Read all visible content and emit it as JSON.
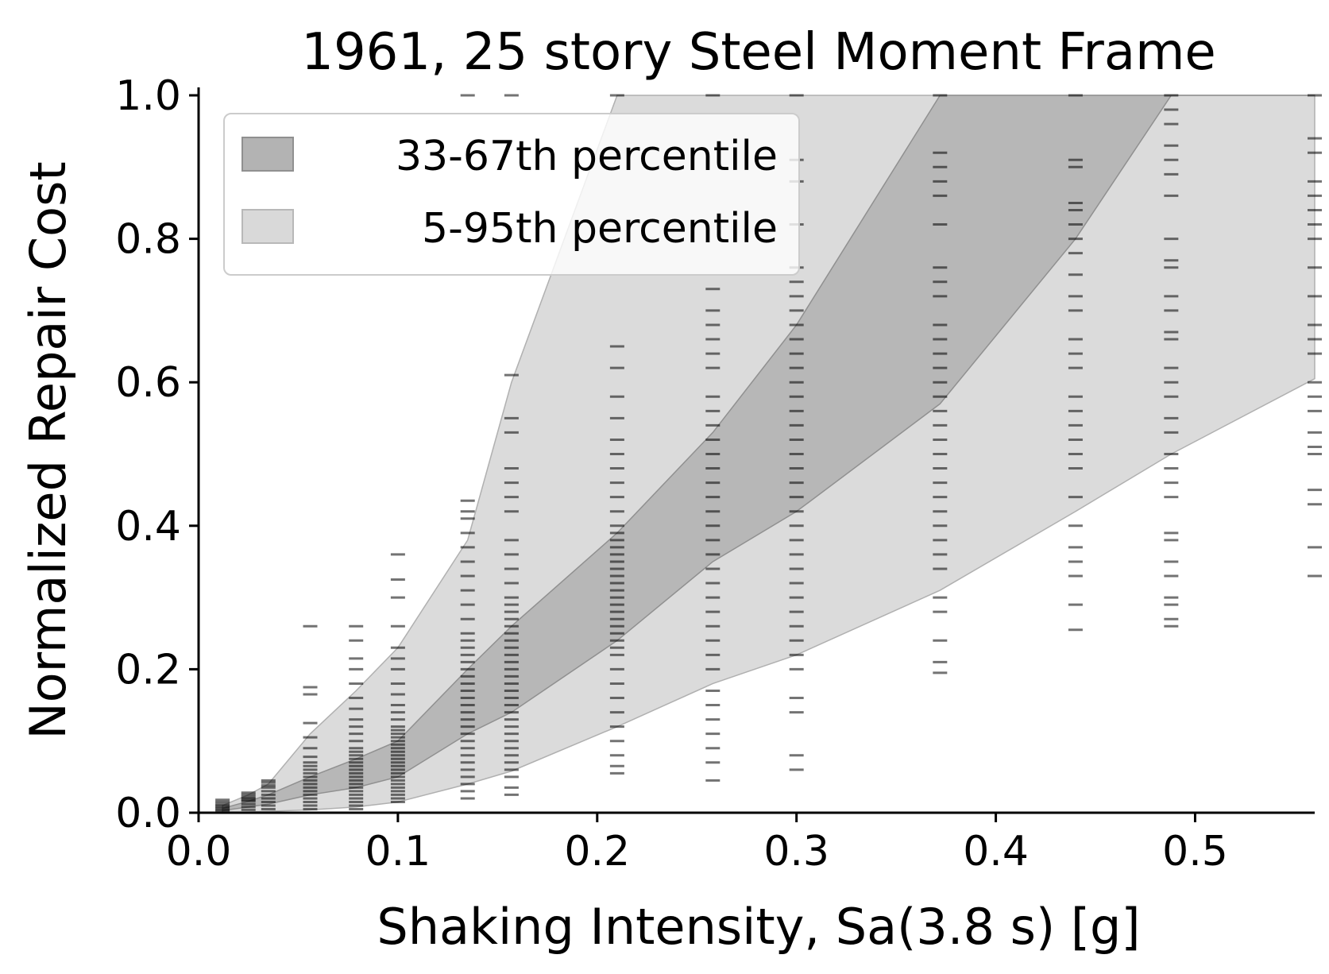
{
  "chart_data": {
    "type": "scatter",
    "title": "1961, 25 story Steel Moment Frame",
    "xlabel": "Shaking Intensity, Sa(3.8 s) [g]",
    "ylabel": "Normalized Repair Cost",
    "xlim": [
      0.0,
      0.56
    ],
    "ylim": [
      0.0,
      1.0
    ],
    "xticks": [
      "0.0",
      "0.1",
      "0.2",
      "0.3",
      "0.4",
      "0.5"
    ],
    "yticks": [
      "0.0",
      "0.2",
      "0.4",
      "0.6",
      "0.8",
      "1.0"
    ],
    "grid": false,
    "legend_position": "top-left",
    "legend": [
      {
        "label": "33-67th percentile",
        "color": "#b3b3b3"
      },
      {
        "label": "5-95th percentile",
        "color": "#d9d9d9"
      }
    ],
    "intensity_levels": [
      0.012,
      0.025,
      0.035,
      0.056,
      0.079,
      0.1,
      0.135,
      0.157,
      0.21,
      0.258,
      0.3,
      0.372,
      0.44,
      0.488,
      0.56
    ],
    "band_5_95": {
      "lower": [
        0.0,
        0.001,
        0.002,
        0.004,
        0.008,
        0.015,
        0.04,
        0.058,
        0.12,
        0.18,
        0.22,
        0.31,
        0.42,
        0.5,
        0.605
      ],
      "upper": [
        0.01,
        0.025,
        0.04,
        0.11,
        0.17,
        0.23,
        0.38,
        0.6,
        1.0,
        1.0,
        1.0,
        1.0,
        1.0,
        1.0,
        1.0
      ]
    },
    "band_33_67": {
      "lower": [
        0.003,
        0.008,
        0.012,
        0.025,
        0.035,
        0.05,
        0.11,
        0.14,
        0.24,
        0.35,
        0.42,
        0.57,
        0.8,
        1.0,
        1.0
      ],
      "upper": [
        0.006,
        0.016,
        0.025,
        0.05,
        0.075,
        0.1,
        0.2,
        0.26,
        0.39,
        0.53,
        0.68,
        1.0,
        1.0,
        1.0,
        1.0
      ]
    },
    "samples": [
      {
        "x": 0.012,
        "values": [
          0.0,
          0.002,
          0.004,
          0.006,
          0.008,
          0.01,
          0.012,
          0.015,
          0.018
        ]
      },
      {
        "x": 0.025,
        "values": [
          0.004,
          0.008,
          0.012,
          0.016,
          0.018,
          0.02,
          0.022,
          0.025,
          0.028
        ]
      },
      {
        "x": 0.035,
        "values": [
          0.005,
          0.01,
          0.015,
          0.02,
          0.025,
          0.03,
          0.035,
          0.038,
          0.042,
          0.045
        ]
      },
      {
        "x": 0.056,
        "values": [
          0.005,
          0.01,
          0.015,
          0.02,
          0.025,
          0.03,
          0.035,
          0.04,
          0.045,
          0.05,
          0.055,
          0.06,
          0.065,
          0.07,
          0.078,
          0.09,
          0.105,
          0.125,
          0.165,
          0.175,
          0.26
        ]
      },
      {
        "x": 0.079,
        "values": [
          0.005,
          0.01,
          0.015,
          0.02,
          0.025,
          0.03,
          0.035,
          0.04,
          0.045,
          0.05,
          0.055,
          0.06,
          0.065,
          0.07,
          0.075,
          0.08,
          0.085,
          0.09,
          0.1,
          0.11,
          0.12,
          0.13,
          0.145,
          0.16,
          0.18,
          0.2,
          0.215,
          0.24,
          0.26
        ]
      },
      {
        "x": 0.1,
        "values": [
          0.015,
          0.02,
          0.025,
          0.03,
          0.035,
          0.04,
          0.045,
          0.05,
          0.055,
          0.06,
          0.065,
          0.07,
          0.075,
          0.08,
          0.085,
          0.09,
          0.095,
          0.1,
          0.105,
          0.11,
          0.115,
          0.12,
          0.13,
          0.14,
          0.15,
          0.165,
          0.18,
          0.2,
          0.215,
          0.23,
          0.26,
          0.3,
          0.325,
          0.36
        ]
      },
      {
        "x": 0.135,
        "values": [
          0.02,
          0.03,
          0.04,
          0.05,
          0.06,
          0.07,
          0.08,
          0.09,
          0.1,
          0.11,
          0.12,
          0.13,
          0.14,
          0.15,
          0.16,
          0.17,
          0.18,
          0.19,
          0.2,
          0.21,
          0.22,
          0.23,
          0.24,
          0.25,
          0.27,
          0.29,
          0.31,
          0.33,
          0.35,
          0.37,
          0.39,
          0.41,
          0.42,
          0.435,
          1.0
        ]
      },
      {
        "x": 0.157,
        "values": [
          0.025,
          0.035,
          0.05,
          0.06,
          0.07,
          0.08,
          0.09,
          0.1,
          0.11,
          0.12,
          0.13,
          0.14,
          0.15,
          0.16,
          0.17,
          0.18,
          0.19,
          0.2,
          0.21,
          0.22,
          0.23,
          0.24,
          0.25,
          0.26,
          0.27,
          0.28,
          0.29,
          0.3,
          0.32,
          0.34,
          0.36,
          0.38,
          0.42,
          0.44,
          0.46,
          0.48,
          0.53,
          0.55,
          0.61,
          1.0
        ]
      },
      {
        "x": 0.21,
        "values": [
          0.055,
          0.065,
          0.08,
          0.1,
          0.12,
          0.14,
          0.16,
          0.18,
          0.2,
          0.22,
          0.23,
          0.24,
          0.25,
          0.26,
          0.27,
          0.28,
          0.29,
          0.3,
          0.31,
          0.32,
          0.33,
          0.34,
          0.35,
          0.36,
          0.37,
          0.38,
          0.39,
          0.4,
          0.42,
          0.44,
          0.46,
          0.48,
          0.5,
          0.52,
          0.55,
          0.58,
          0.62,
          0.65,
          1.0
        ]
      },
      {
        "x": 0.258,
        "values": [
          0.045,
          0.07,
          0.09,
          0.11,
          0.13,
          0.15,
          0.17,
          0.2,
          0.22,
          0.24,
          0.26,
          0.28,
          0.3,
          0.32,
          0.34,
          0.36,
          0.38,
          0.4,
          0.42,
          0.44,
          0.46,
          0.48,
          0.5,
          0.52,
          0.54,
          0.56,
          0.58,
          0.62,
          0.64,
          0.66,
          0.68,
          0.7,
          0.73,
          1.0
        ]
      },
      {
        "x": 0.3,
        "values": [
          0.06,
          0.08,
          0.14,
          0.16,
          0.2,
          0.22,
          0.24,
          0.26,
          0.28,
          0.3,
          0.32,
          0.34,
          0.36,
          0.38,
          0.4,
          0.42,
          0.44,
          0.46,
          0.48,
          0.5,
          0.52,
          0.54,
          0.56,
          0.58,
          0.6,
          0.62,
          0.64,
          0.66,
          0.68,
          0.7,
          0.72,
          0.74,
          0.76,
          0.82,
          0.88,
          0.91,
          1.0
        ]
      },
      {
        "x": 0.372,
        "values": [
          0.195,
          0.21,
          0.24,
          0.28,
          0.3,
          0.34,
          0.36,
          0.38,
          0.4,
          0.42,
          0.44,
          0.46,
          0.48,
          0.5,
          0.52,
          0.54,
          0.56,
          0.58,
          0.6,
          0.62,
          0.64,
          0.66,
          0.68,
          0.72,
          0.74,
          0.76,
          0.82,
          0.86,
          0.88,
          0.9,
          0.92,
          1.0
        ]
      },
      {
        "x": 0.44,
        "values": [
          0.255,
          0.29,
          0.33,
          0.35,
          0.37,
          0.4,
          0.44,
          0.48,
          0.5,
          0.52,
          0.54,
          0.56,
          0.58,
          0.62,
          0.64,
          0.66,
          0.7,
          0.72,
          0.75,
          0.78,
          0.8,
          0.82,
          0.84,
          0.85,
          0.9,
          0.91,
          1.0
        ]
      },
      {
        "x": 0.488,
        "values": [
          0.26,
          0.27,
          0.29,
          0.3,
          0.33,
          0.35,
          0.38,
          0.39,
          0.44,
          0.46,
          0.48,
          0.5,
          0.53,
          0.55,
          0.58,
          0.6,
          0.62,
          0.66,
          0.67,
          0.7,
          0.72,
          0.76,
          0.77,
          0.8,
          0.86,
          0.89,
          0.91,
          0.93,
          0.96,
          0.98,
          1.0
        ]
      },
      {
        "x": 0.56,
        "values": [
          0.33,
          0.37,
          0.43,
          0.45,
          0.5,
          0.51,
          0.53,
          0.56,
          0.58,
          0.6,
          0.64,
          0.66,
          0.68,
          0.72,
          0.76,
          0.8,
          0.82,
          0.84,
          0.86,
          0.88,
          0.92,
          0.94,
          1.0
        ]
      }
    ]
  }
}
